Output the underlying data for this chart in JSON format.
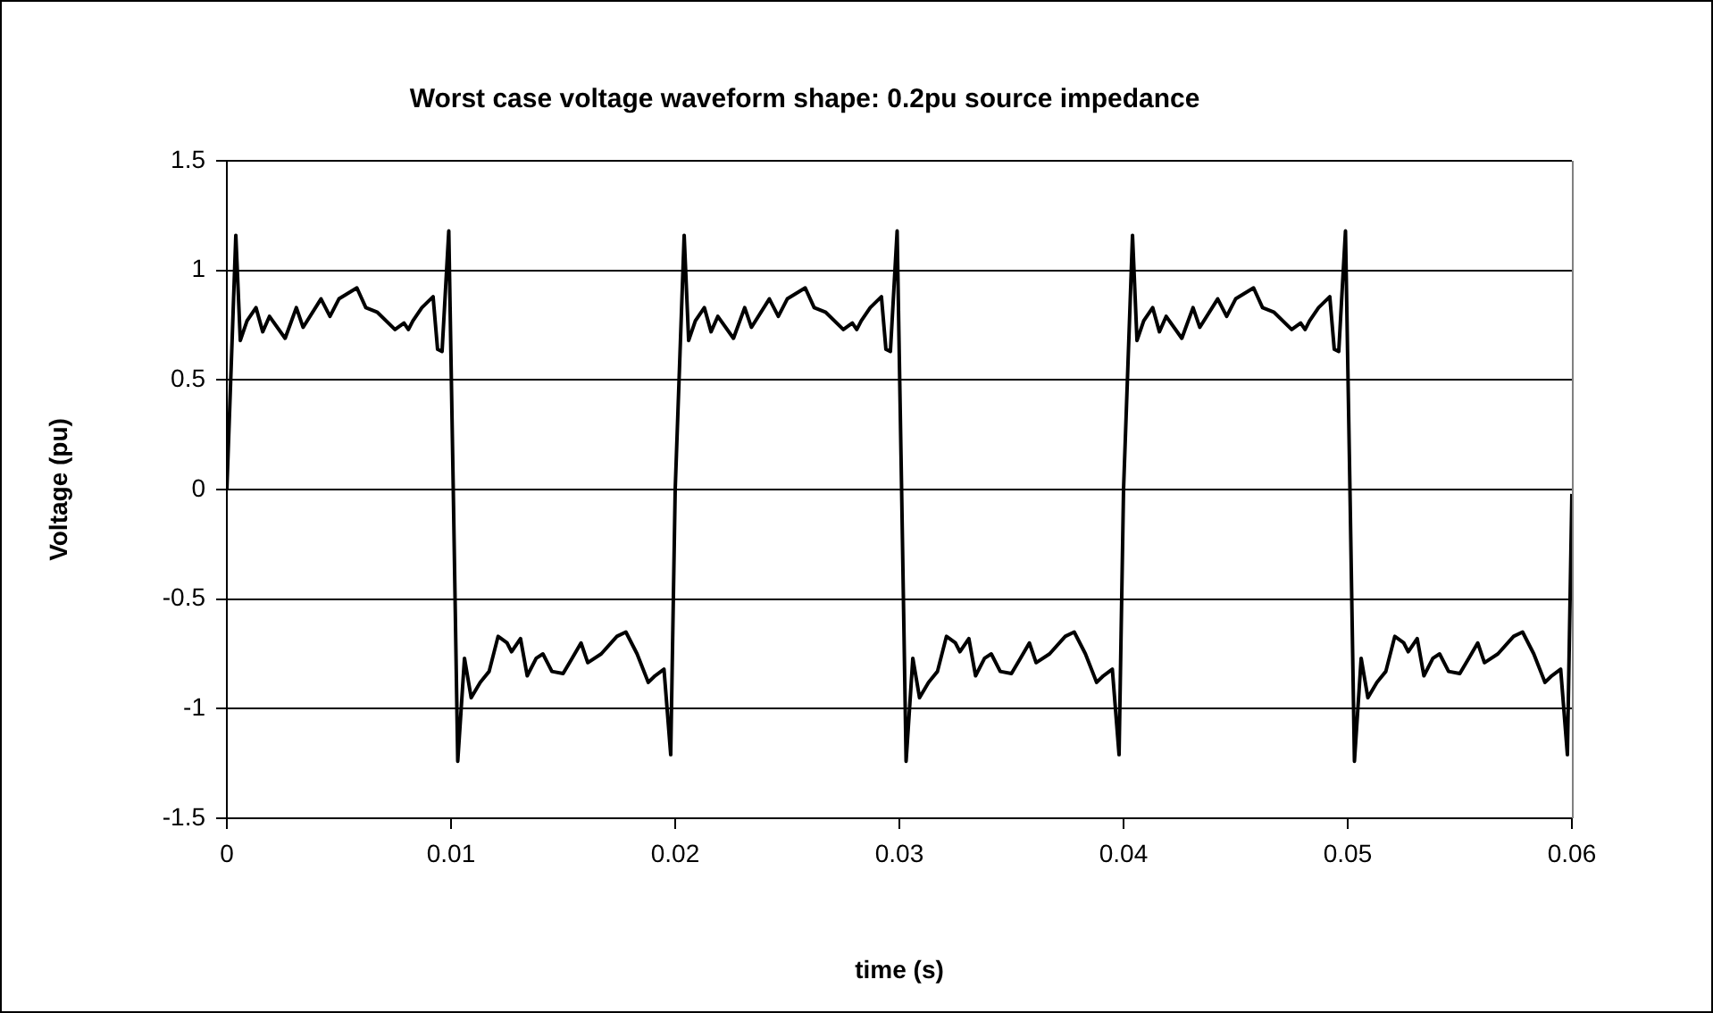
{
  "chart_data": {
    "type": "line",
    "title": "Worst case voltage waveform shape: 0.2pu source impedance",
    "xlabel": "time (s)",
    "ylabel": "Voltage (pu)",
    "x": [
      0,
      0.0004,
      0.0006,
      0.0009,
      0.0013,
      0.0016,
      0.0019,
      0.0026,
      0.0031,
      0.0034,
      0.0042,
      0.0046,
      0.005,
      0.0058,
      0.0062,
      0.0067,
      0.0075,
      0.0079,
      0.0081,
      0.0083,
      0.0087,
      0.0092,
      0.0094,
      0.0096,
      0.0099,
      0.0101,
      0.0103,
      0.0106,
      0.0109,
      0.0113,
      0.0117,
      0.0121,
      0.0125,
      0.0127,
      0.0131,
      0.0134,
      0.0138,
      0.0141,
      0.0145,
      0.015,
      0.0154,
      0.0158,
      0.0161,
      0.0167,
      0.0174,
      0.0178,
      0.0183,
      0.0188,
      0.0191,
      0.0195,
      0.0198,
      0.02,
      0.0204,
      0.0206,
      0.0209,
      0.0213,
      0.0216,
      0.0219,
      0.0226,
      0.0231,
      0.0234,
      0.0242,
      0.0246,
      0.025,
      0.0258,
      0.0262,
      0.0267,
      0.0275,
      0.0279,
      0.0281,
      0.0283,
      0.0287,
      0.0292,
      0.0294,
      0.0296,
      0.0299,
      0.0301,
      0.0303,
      0.0306,
      0.0309,
      0.0313,
      0.0317,
      0.0321,
      0.0325,
      0.0327,
      0.0331,
      0.0334,
      0.0338,
      0.0341,
      0.0345,
      0.035,
      0.0354,
      0.0358,
      0.0361,
      0.0367,
      0.0374,
      0.0378,
      0.0383,
      0.0388,
      0.0391,
      0.0395,
      0.0398,
      0.04,
      0.0404,
      0.0406,
      0.0409,
      0.0413,
      0.0416,
      0.0419,
      0.0426,
      0.0431,
      0.0434,
      0.0442,
      0.0446,
      0.045,
      0.0458,
      0.0462,
      0.0467,
      0.0475,
      0.0479,
      0.0481,
      0.0483,
      0.0487,
      0.0492,
      0.0494,
      0.0496,
      0.0499,
      0.0501,
      0.0503,
      0.0506,
      0.0509,
      0.0513,
      0.0517,
      0.0521,
      0.0525,
      0.0527,
      0.0531,
      0.0534,
      0.0538,
      0.0541,
      0.0545,
      0.055,
      0.0554,
      0.0558,
      0.0561,
      0.0567,
      0.0574,
      0.0578,
      0.0583,
      0.0588,
      0.0591,
      0.0595,
      0.0598,
      0.06
    ],
    "series": [
      {
        "color": "#000000",
        "values": [
          0,
          1.16,
          0.68,
          0.77,
          0.83,
          0.72,
          0.79,
          0.69,
          0.83,
          0.74,
          0.87,
          0.79,
          0.87,
          0.92,
          0.83,
          0.81,
          0.73,
          0.76,
          0.73,
          0.77,
          0.83,
          0.88,
          0.64,
          0.63,
          1.18,
          0,
          -1.24,
          -0.77,
          -0.95,
          -0.88,
          -0.83,
          -0.67,
          -0.7,
          -0.74,
          -0.68,
          -0.85,
          -0.77,
          -0.75,
          -0.83,
          -0.84,
          -0.77,
          -0.7,
          -0.79,
          -0.75,
          -0.67,
          -0.65,
          -0.75,
          -0.88,
          -0.85,
          -0.82,
          -1.21,
          0,
          1.16,
          0.68,
          0.77,
          0.83,
          0.72,
          0.79,
          0.69,
          0.83,
          0.74,
          0.87,
          0.79,
          0.87,
          0.92,
          0.83,
          0.81,
          0.73,
          0.76,
          0.73,
          0.77,
          0.83,
          0.88,
          0.64,
          0.63,
          1.18,
          0,
          -1.24,
          -0.77,
          -0.95,
          -0.88,
          -0.83,
          -0.67,
          -0.7,
          -0.74,
          -0.68,
          -0.85,
          -0.77,
          -0.75,
          -0.83,
          -0.84,
          -0.77,
          -0.7,
          -0.79,
          -0.75,
          -0.67,
          -0.65,
          -0.75,
          -0.88,
          -0.85,
          -0.82,
          -1.21,
          0,
          1.16,
          0.68,
          0.77,
          0.83,
          0.72,
          0.79,
          0.69,
          0.83,
          0.74,
          0.87,
          0.79,
          0.87,
          0.92,
          0.83,
          0.81,
          0.73,
          0.76,
          0.73,
          0.77,
          0.83,
          0.88,
          0.64,
          0.63,
          1.18,
          0,
          -1.24,
          -0.77,
          -0.95,
          -0.88,
          -0.83,
          -0.67,
          -0.7,
          -0.74,
          -0.68,
          -0.85,
          -0.77,
          -0.75,
          -0.83,
          -0.84,
          -0.77,
          -0.7,
          -0.79,
          -0.75,
          -0.67,
          -0.65,
          -0.75,
          -0.88,
          -0.85,
          -0.82,
          -1.21,
          -0.02
        ]
      }
    ],
    "xlim": [
      0,
      0.06
    ],
    "xticks": [
      0,
      0.01,
      0.02,
      0.03,
      0.04,
      0.05,
      0.06
    ],
    "ylim": [
      -1.5,
      1.5
    ],
    "yticks": [
      -1.5,
      -1,
      -0.5,
      0,
      0.5,
      1,
      1.5
    ],
    "grid": "y",
    "marker": "none",
    "line_style": "solid"
  }
}
